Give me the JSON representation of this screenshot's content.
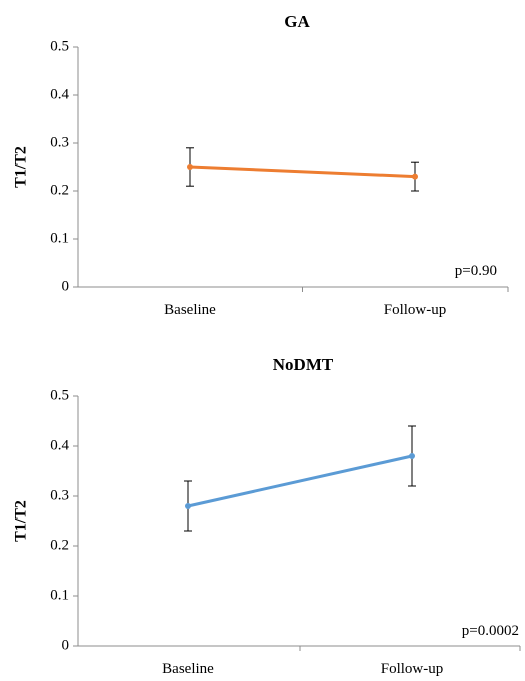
{
  "chart_data": [
    {
      "type": "line",
      "title": "GA",
      "xlabel": "",
      "ylabel": "T1/T2",
      "categories": [
        "Baseline",
        "Follow-up"
      ],
      "series": [
        {
          "values": [
            0.25,
            0.23
          ],
          "error": [
            0.04,
            0.03
          ],
          "color": "#ED7D31"
        }
      ],
      "ylim": [
        0,
        0.5
      ],
      "yticks": [
        "0",
        "0.1",
        "0.2",
        "0.3",
        "0.4",
        "0.5"
      ],
      "annotation": "p=0.90",
      "grid": false
    },
    {
      "type": "line",
      "title": "NoDMT",
      "xlabel": "",
      "ylabel": "T1/T2",
      "categories": [
        "Baseline",
        "Follow-up"
      ],
      "series": [
        {
          "values": [
            0.28,
            0.38
          ],
          "error": [
            0.05,
            0.06
          ],
          "color": "#5B9BD5"
        }
      ],
      "ylim": [
        0,
        0.5
      ],
      "yticks": [
        "0",
        "0.1",
        "0.2",
        "0.3",
        "0.4",
        "0.5"
      ],
      "annotation": "p=0.0002",
      "grid": false
    }
  ]
}
